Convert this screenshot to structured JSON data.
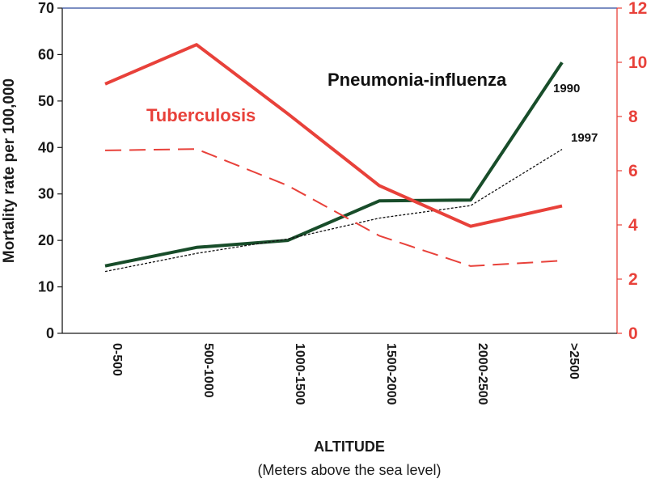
{
  "chart_data": {
    "type": "line",
    "categories": [
      "0-500",
      "500-1000",
      "1000-1500",
      "1500-2000",
      "2000-2500",
      ">2500"
    ],
    "left_axis": {
      "label": "Mortality rate per 100,000",
      "ylim": [
        0,
        70
      ],
      "ticks": [
        0,
        10,
        20,
        30,
        40,
        50,
        60,
        70
      ],
      "tick_labels": [
        "0",
        "10",
        "20",
        "30",
        "40",
        "50",
        "60",
        "70"
      ],
      "color": "#1a1a1a"
    },
    "right_axis": {
      "ylim": [
        0,
        12
      ],
      "ticks": [
        0,
        2,
        4,
        6,
        8,
        10,
        12
      ],
      "tick_labels": [
        "0",
        "2",
        "4",
        "6",
        "8",
        "10",
        "12"
      ],
      "color": "#e8413a"
    },
    "xlabel": "ALTITUDE",
    "xlabel_sub": "(Meters above the sea level)",
    "series": [
      {
        "name": "Pneumonia-influenza 1990",
        "axis": "left",
        "color": "#184d2a",
        "style": "solid",
        "values": [
          14.5,
          18.5,
          20.0,
          28.5,
          28.7,
          58.3
        ]
      },
      {
        "name": "Pneumonia-influenza 1997",
        "axis": "left",
        "color": "#111111",
        "style": "dotted",
        "values": [
          13.3,
          17.2,
          20.3,
          24.8,
          27.5,
          39.6
        ]
      },
      {
        "name": "Tuberculosis 1990",
        "axis": "right",
        "color": "#e8413a",
        "style": "solid",
        "values": [
          9.2,
          10.65,
          8.1,
          5.45,
          3.95,
          4.7
        ]
      },
      {
        "name": "Tuberculosis 1997",
        "axis": "right",
        "color": "#e8413a",
        "style": "dashed",
        "values": [
          6.75,
          6.8,
          5.45,
          3.6,
          2.48,
          2.68
        ]
      }
    ],
    "annotations": {
      "tuberculosis": "Tuberculosis",
      "pneumonia": "Pneumonia-influenza",
      "year_1990": "1990",
      "year_1997": "1997"
    }
  }
}
